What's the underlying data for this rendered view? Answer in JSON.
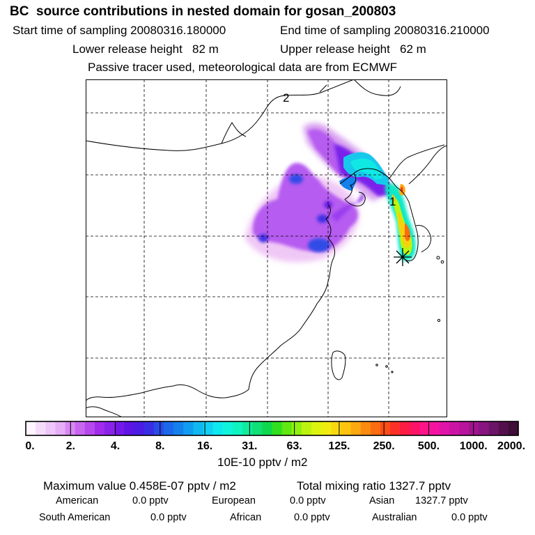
{
  "header": {
    "title": "BC  source contributions in nested domain for gosan_200803",
    "start_label": "Start time of sampling 20080316.180000",
    "end_label": "End time of sampling 20080316.210000",
    "lower_label": "Lower release height   82 m",
    "upper_label": "Upper release height   62 m",
    "note": "Passive tracer used, meteorological data are from ECMWF"
  },
  "map": {
    "labels": {
      "contour_2": "2",
      "contour_1": "1"
    }
  },
  "colorbar": {
    "ticks": [
      "0.",
      "2.",
      "4.",
      "8.",
      "16.",
      "31.",
      "63.",
      "125.",
      "250.",
      "500.",
      "1000.",
      "2000."
    ],
    "colors": [
      "#fff4ff",
      "#f6dcfb",
      "#eec6f9",
      "#e6aef7",
      "#d888f3",
      "#c866f0",
      "#b648ee",
      "#a22cec",
      "#8a22ea",
      "#7418e8",
      "#5e14e6",
      "#4a1ce4",
      "#3a2ee4",
      "#2a4ce6",
      "#1c68ea",
      "#1480ec",
      "#109cf0",
      "#10b8f2",
      "#10d0f4",
      "#10e8f0",
      "#10f4dc",
      "#10f4c0",
      "#10ec9c",
      "#10e076",
      "#10d84c",
      "#30e020",
      "#60e810",
      "#90f010",
      "#bcf410",
      "#dcf410",
      "#f0ec10",
      "#f8d810",
      "#fcc410",
      "#fca810",
      "#fc8c10",
      "#fc6c10",
      "#fc4c18",
      "#fc3028",
      "#fc1c44",
      "#fc1466",
      "#fc1488",
      "#f414a0",
      "#e014a8",
      "#cc14a4",
      "#b8149c",
      "#a01490",
      "#881480",
      "#6c1468",
      "#54104c",
      "#400c38"
    ],
    "unit_label": "10E-10 pptv / m2"
  },
  "stats": {
    "max_label": "Maximum value  0.458E-07 pptv / m2",
    "total_label": "Total mixing ratio    1327.7 pptv",
    "american": "American",
    "american_val": "0.0 pptv",
    "european": "European",
    "european_val": "0.0 pptv",
    "asian": "Asian",
    "asian_val": "1327.7 pptv",
    "south_american": "South American",
    "south_american_val": "0.0 pptv",
    "african": "African",
    "african_val": "0.0 pptv",
    "australian": "Australian",
    "australian_val": "0.0 pptv"
  }
}
